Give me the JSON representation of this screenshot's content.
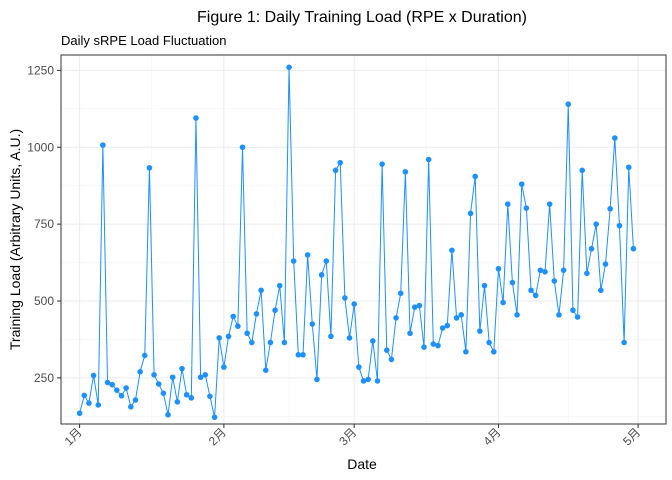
{
  "chart_data": {
    "type": "line",
    "title": "Figure 1: Daily Training Load (RPE x Duration)",
    "subtitle": "Daily sRPE Load Fluctuation",
    "xlabel": "Date",
    "ylabel": "Training Load (Arbitrary Units, A.U.)",
    "ylim": [
      100,
      1300
    ],
    "y_ticks": [
      250,
      500,
      750,
      1000,
      1250
    ],
    "x_ticks": [
      {
        "day": 0,
        "label": "1月"
      },
      {
        "day": 31,
        "label": "2月"
      },
      {
        "day": 59,
        "label": "3月"
      },
      {
        "day": 90,
        "label": "4月"
      },
      {
        "day": 120,
        "label": "5月"
      }
    ],
    "x_range_days": [
      -4,
      126
    ],
    "grid": true,
    "colors": {
      "line": "#1e90ff",
      "point": "#1e90ff",
      "panel_border": "#333333"
    },
    "series": [
      {
        "values": [
          135,
          193,
          168,
          258,
          162,
          1007,
          235,
          228,
          210,
          192,
          217,
          156,
          178,
          270,
          323,
          933,
          260,
          230,
          200,
          130,
          252,
          172,
          280,
          195,
          185,
          1095,
          252,
          260,
          190,
          122,
          380,
          285,
          385,
          450,
          418,
          1000,
          395,
          365,
          458,
          535,
          275,
          365,
          470,
          550,
          365,
          1260,
          630,
          325,
          325,
          650,
          425,
          245,
          585,
          630,
          385,
          925,
          950,
          510,
          380,
          490,
          285,
          240,
          245,
          370,
          240,
          945,
          340,
          310,
          445,
          525,
          920,
          395,
          480,
          485,
          350,
          960,
          360,
          355,
          412,
          420,
          665,
          445,
          455,
          335,
          785,
          905,
          402,
          550,
          365,
          335,
          605,
          495,
          815,
          560,
          455,
          880,
          802,
          535,
          518,
          600,
          595,
          815,
          565,
          455,
          600,
          1140,
          470,
          448,
          925,
          590,
          670,
          750,
          535,
          620,
          800,
          1030,
          745,
          365,
          935,
          670
        ]
      }
    ]
  }
}
